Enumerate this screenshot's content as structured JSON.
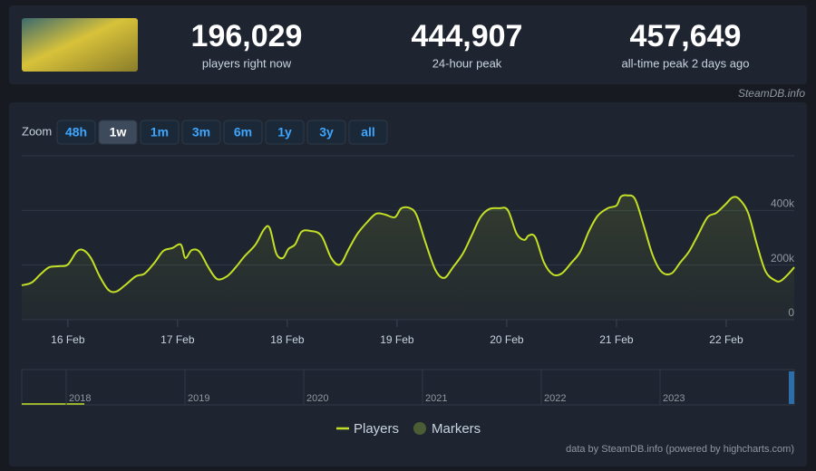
{
  "header": {
    "stats": [
      {
        "value": "196,029",
        "label": "players right now"
      },
      {
        "value": "444,907",
        "label": "24-hour peak"
      },
      {
        "value": "457,649",
        "label": "all-time peak 2 days ago"
      }
    ],
    "source": "SteamDB.info"
  },
  "zoom": {
    "label": "Zoom",
    "buttons": [
      "48h",
      "1w",
      "1m",
      "3m",
      "6m",
      "1y",
      "3y",
      "all"
    ],
    "active": "1w"
  },
  "navigator_labels": [
    "2018",
    "2019",
    "2020",
    "2021",
    "2022",
    "2023"
  ],
  "credit": "data by SteamDB.info (powered by highcharts.com)",
  "chart_data": {
    "type": "line",
    "x": [
      15.58,
      15.67,
      15.75,
      15.83,
      15.92,
      16.0,
      16.08,
      16.14,
      16.21,
      16.29,
      16.37,
      16.44,
      16.52,
      16.62,
      16.7,
      16.79,
      16.87,
      16.95,
      17.03,
      17.07,
      17.13,
      17.2,
      17.28,
      17.36,
      17.45,
      17.53,
      17.61,
      17.71,
      17.79,
      17.84,
      17.9,
      17.96,
      18.01,
      18.07,
      18.13,
      18.21,
      18.31,
      18.4,
      18.48,
      18.56,
      18.64,
      18.73,
      18.81,
      18.89,
      18.98,
      19.04,
      19.12,
      19.18,
      19.26,
      19.35,
      19.43,
      19.51,
      19.6,
      19.68,
      19.76,
      19.84,
      19.93,
      20.01,
      20.09,
      20.16,
      20.2,
      20.26,
      20.34,
      20.42,
      20.5,
      20.59,
      20.67,
      20.75,
      20.83,
      20.92,
      21.0,
      21.04,
      21.1,
      21.17,
      21.25,
      21.33,
      21.41,
      21.5,
      21.58,
      21.66,
      21.74,
      21.83,
      21.91,
      21.99,
      22.06,
      22.12,
      22.2,
      22.28,
      22.36,
      22.45,
      22.5,
      22.57,
      22.62
    ],
    "series": [
      {
        "name": "Players",
        "color": "#c3e026",
        "values": [
          126000,
          136000,
          166000,
          192000,
          196000,
          202000,
          249000,
          255000,
          226000,
          159000,
          109000,
          103000,
          126000,
          159000,
          169000,
          209000,
          252000,
          262000,
          275000,
          226000,
          255000,
          249000,
          192000,
          149000,
          159000,
          192000,
          232000,
          275000,
          332000,
          335000,
          242000,
          226000,
          259000,
          275000,
          322000,
          325000,
          308000,
          226000,
          202000,
          259000,
          315000,
          358000,
          388000,
          385000,
          375000,
          408000,
          408000,
          381000,
          282000,
          182000,
          153000,
          192000,
          242000,
          308000,
          375000,
          405000,
          408000,
          401000,
          315000,
          292000,
          308000,
          302000,
          209000,
          166000,
          169000,
          209000,
          249000,
          325000,
          381000,
          408000,
          418000,
          450000,
          455000,
          441000,
          342000,
          236000,
          176000,
          169000,
          209000,
          249000,
          308000,
          375000,
          391000,
          421000,
          448000,
          441000,
          391000,
          275000,
          176000,
          143000,
          143000,
          169000,
          192000
        ]
      }
    ],
    "markers_legend": {
      "name": "Markers",
      "color": "#4b5d35"
    },
    "xlim": [
      15.58,
      22.62
    ],
    "xticks": [
      {
        "value": 16,
        "label": "16 Feb"
      },
      {
        "value": 17,
        "label": "17 Feb"
      },
      {
        "value": 18,
        "label": "18 Feb"
      },
      {
        "value": 19,
        "label": "19 Feb"
      },
      {
        "value": 20,
        "label": "20 Feb"
      },
      {
        "value": 21,
        "label": "21 Feb"
      },
      {
        "value": 22,
        "label": "22 Feb"
      }
    ],
    "ylim": [
      0,
      600000
    ],
    "yticks": [
      0,
      {
        "value": 200000,
        "label": "200k"
      },
      {
        "value": 400000,
        "label": "400k"
      }
    ],
    "grid": true
  }
}
